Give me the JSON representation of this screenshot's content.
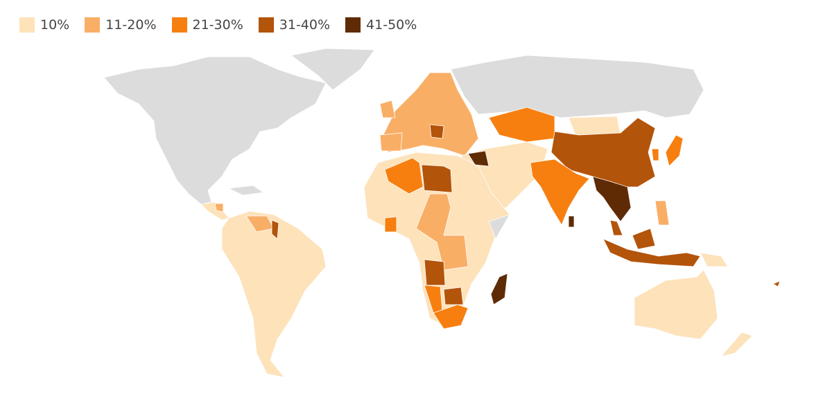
{
  "legend": {
    "items": [
      {
        "label": "10%",
        "color": "#fde2ba"
      },
      {
        "label": "11-20%",
        "color": "#f9ae66"
      },
      {
        "label": "21-30%",
        "color": "#f77f10"
      },
      {
        "label": "31-40%",
        "color": "#b3540b"
      },
      {
        "label": "41-50%",
        "color": "#5f2b05"
      }
    ]
  }
}
